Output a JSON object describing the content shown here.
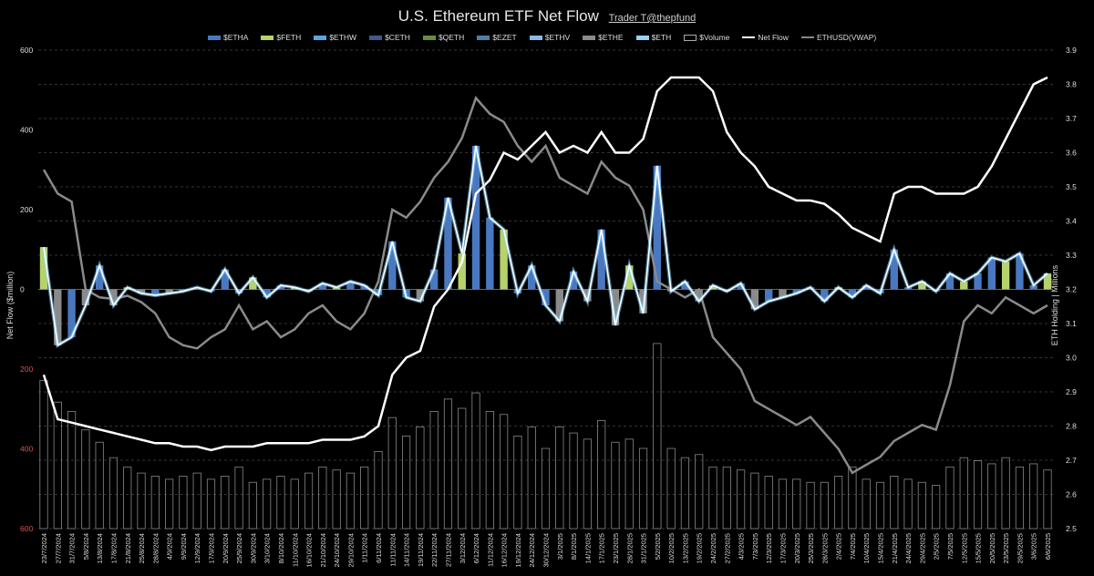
{
  "header": {
    "title": "U.S. Ethereum ETF Net Flow",
    "credit": "Trader T@thepfund"
  },
  "legend": [
    {
      "label": "$ETHA",
      "color": "#4a78c0",
      "kind": "bar"
    },
    {
      "label": "$FETH",
      "color": "#b6d36a",
      "kind": "bar"
    },
    {
      "label": "$ETHW",
      "color": "#5aa7e0",
      "kind": "bar"
    },
    {
      "label": "$CETH",
      "color": "#3e5a8c",
      "kind": "bar"
    },
    {
      "label": "$QETH",
      "color": "#6a8c3e",
      "kind": "bar"
    },
    {
      "label": "$EZET",
      "color": "#4f7fa8",
      "kind": "bar"
    },
    {
      "label": "$ETHV",
      "color": "#8fb8e8",
      "kind": "bar"
    },
    {
      "label": "$ETHE",
      "color": "#8a8a8a",
      "kind": "bar"
    },
    {
      "label": "$ETH",
      "color": "#9ad0f0",
      "kind": "bar"
    },
    {
      "label": "$Volume",
      "color": "#cccccc",
      "kind": "box"
    },
    {
      "label": "Net Flow",
      "color": "#ffffff",
      "kind": "line"
    },
    {
      "label": "ETHUSD(VWAP)",
      "color": "#888888",
      "kind": "line"
    }
  ],
  "chart_data": {
    "type": "bar",
    "title": "U.S. Ethereum ETF Net Flow",
    "ylabel": "Net Flow ($million)",
    "y2label": "ETH Holding | Millions",
    "ylim": [
      -600,
      600
    ],
    "y2lim": [
      2.5,
      3.9
    ],
    "y_ticks": [
      "600",
      "400",
      "200",
      "0",
      "200",
      "400",
      "600"
    ],
    "y2_ticks": [
      "3.9",
      "3.8",
      "3.7",
      "3.6",
      "3.5",
      "3.4",
      "3.3",
      "3.2",
      "3.1",
      "3.0",
      "2.9",
      "2.8",
      "2.7",
      "2.6",
      "2.5"
    ],
    "categories": [
      "23/7/2024",
      "27/7/2024",
      "31/7/2024",
      "5/8/2024",
      "13/8/2024",
      "17/8/2024",
      "21/8/2024",
      "25/8/2024",
      "28/8/2024",
      "4/9/2024",
      "9/9/2024",
      "12/9/2024",
      "17/9/2024",
      "20/9/2024",
      "25/9/2024",
      "30/9/2024",
      "3/10/2024",
      "8/10/2024",
      "11/10/2024",
      "16/10/2024",
      "21/10/2024",
      "24/10/2024",
      "29/10/2024",
      "1/11/2024",
      "6/11/2024",
      "11/11/2024",
      "14/11/2024",
      "19/11/2024",
      "22/11/2024",
      "27/11/2024",
      "3/12/2024",
      "6/12/2024",
      "11/12/2024",
      "16/12/2024",
      "19/12/2024",
      "24/12/2024",
      "30/12/2024",
      "3/1/2025",
      "8/1/2025",
      "14/1/2025",
      "17/1/2025",
      "23/1/2025",
      "28/1/2025",
      "31/1/2025",
      "5/2/2025",
      "10/2/2025",
      "13/2/2025",
      "19/2/2025",
      "24/2/2025",
      "27/2/2025",
      "4/3/2025",
      "7/3/2025",
      "12/3/2025",
      "17/3/2025",
      "20/3/2025",
      "25/3/2025",
      "28/3/2025",
      "2/4/2025",
      "7/4/2025",
      "10/4/2025",
      "15/4/2025",
      "21/4/2025",
      "24/4/2025",
      "29/4/2025",
      "2/5/2025",
      "7/5/2025",
      "12/5/2025",
      "15/5/2025",
      "20/5/2025",
      "23/5/2025",
      "29/5/2025",
      "3/6/2025",
      "6/6/2025"
    ],
    "net_flow": [
      106,
      -140,
      -120,
      -40,
      60,
      -40,
      5,
      -10,
      -15,
      -10,
      -5,
      5,
      -5,
      50,
      -10,
      30,
      -20,
      10,
      5,
      -5,
      15,
      5,
      20,
      10,
      -15,
      120,
      -20,
      -30,
      50,
      230,
      90,
      360,
      180,
      150,
      -10,
      60,
      -40,
      -80,
      45,
      -30,
      150,
      -90,
      60,
      -60,
      310,
      -5,
      20,
      -30,
      10,
      -5,
      15,
      -50,
      -30,
      -20,
      -10,
      5,
      -30,
      5,
      -20,
      10,
      -10,
      100,
      5,
      20,
      -5,
      40,
      20,
      40,
      80,
      70,
      90,
      10,
      40
    ],
    "eth_holding": [
      2.95,
      2.82,
      2.81,
      2.8,
      2.79,
      2.78,
      2.77,
      2.76,
      2.75,
      2.75,
      2.74,
      2.74,
      2.73,
      2.74,
      2.74,
      2.74,
      2.75,
      2.75,
      2.75,
      2.75,
      2.76,
      2.76,
      2.76,
      2.77,
      2.8,
      2.95,
      3.0,
      3.02,
      3.15,
      3.2,
      3.28,
      3.48,
      3.52,
      3.6,
      3.58,
      3.62,
      3.66,
      3.6,
      3.62,
      3.6,
      3.66,
      3.6,
      3.6,
      3.64,
      3.78,
      3.82,
      3.82,
      3.82,
      3.78,
      3.66,
      3.6,
      3.56,
      3.5,
      3.48,
      3.46,
      3.46,
      3.45,
      3.42,
      3.38,
      3.36,
      3.34,
      3.48,
      3.5,
      3.5,
      3.48,
      3.48,
      3.48,
      3.5,
      3.56,
      3.64,
      3.72,
      3.8,
      3.82
    ],
    "ethusd_vwap": [
      3450,
      3300,
      3250,
      2700,
      2650,
      2640,
      2660,
      2620,
      2550,
      2400,
      2350,
      2330,
      2400,
      2450,
      2600,
      2450,
      2500,
      2400,
      2450,
      2550,
      2600,
      2500,
      2450,
      2550,
      2750,
      3200,
      3150,
      3250,
      3400,
      3500,
      3650,
      3900,
      3800,
      3750,
      3600,
      3500,
      3600,
      3400,
      3350,
      3300,
      3500,
      3400,
      3350,
      3200,
      2750,
      2700,
      2650,
      2700,
      2400,
      2300,
      2200,
      2000,
      1950,
      1900,
      1850,
      1900,
      1800,
      1700,
      1550,
      1600,
      1650,
      1750,
      1800,
      1850,
      1820,
      2100,
      2500,
      2600,
      2550,
      2650,
      2600,
      2550,
      2600
    ],
    "volume": [
      480,
      410,
      380,
      320,
      280,
      230,
      200,
      180,
      170,
      160,
      170,
      180,
      160,
      170,
      200,
      150,
      160,
      170,
      160,
      180,
      200,
      190,
      180,
      200,
      250,
      360,
      300,
      330,
      380,
      420,
      390,
      440,
      380,
      370,
      300,
      330,
      260,
      330,
      310,
      290,
      350,
      280,
      290,
      260,
      600,
      260,
      230,
      240,
      200,
      200,
      190,
      180,
      170,
      160,
      160,
      150,
      150,
      170,
      200,
      160,
      150,
      170,
      160,
      150,
      140,
      200,
      230,
      220,
      210,
      230,
      200,
      210,
      190
    ]
  }
}
